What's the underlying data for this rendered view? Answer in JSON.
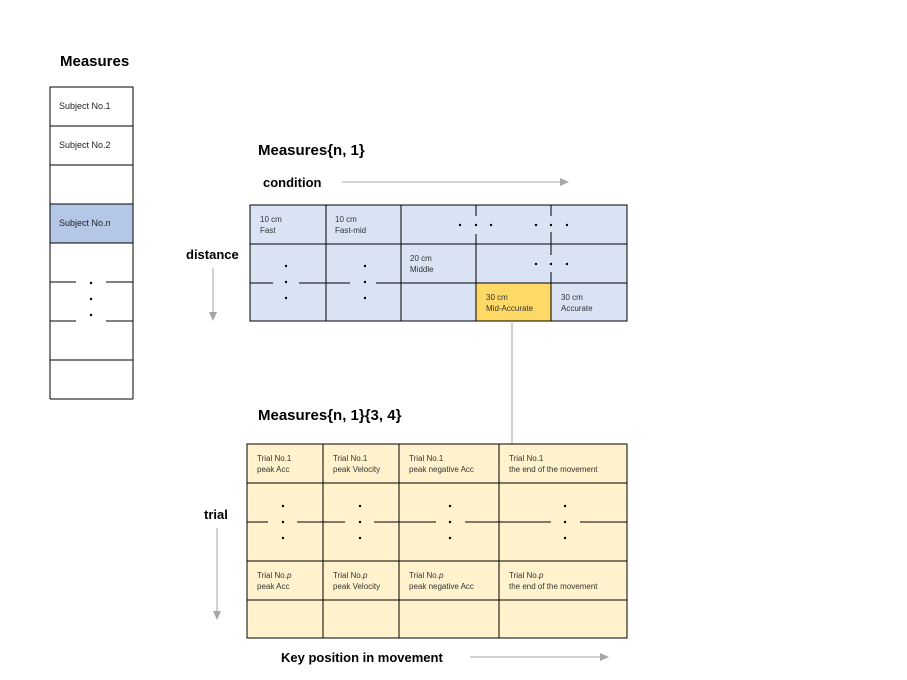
{
  "measures_list": {
    "title": "Measures",
    "items": [
      "Subject No.1",
      "Subject No.2",
      "",
      "Subject No.",
      "",
      "",
      "",
      ""
    ],
    "highlight_suffix": "n"
  },
  "condition_table": {
    "title": "Measures{n, 1}",
    "col_axis_label": "condition",
    "row_axis_label": "distance",
    "cells": {
      "r0c0": [
        "10 cm",
        "Fast"
      ],
      "r0c1": [
        "10 cm",
        "Fast-mid"
      ],
      "r1c2": [
        "20 cm",
        "Middle"
      ],
      "r2c3": [
        "30 cm",
        "Mid-Accurate"
      ],
      "r2c4": [
        "30 cm",
        "Accurate"
      ]
    }
  },
  "trial_table": {
    "title": "Measures{n, 1}{3, 4}",
    "row_axis_label": "trial",
    "col_axis_label": "Key position in movement",
    "first_row": [
      [
        "Trial No.1",
        "peak  Acc"
      ],
      [
        "Trial No.1",
        "peak Velocity"
      ],
      [
        "Trial No.1",
        "peak negative Acc"
      ],
      [
        "Trial No.1",
        "the end of the movement"
      ]
    ],
    "p_row_prefix": "Trial No.",
    "p_row_suffix": "p",
    "p_row_labels": [
      "peak  Acc",
      "peak Velocity",
      "peak negative Acc",
      "the end of the movement"
    ]
  },
  "colors": {
    "blue_fill": "#dae3f3",
    "blue_highlight": "#b4c7e7",
    "yellow_fill": "#fff2cc",
    "yellow_highlight": "#ffd966",
    "border": "#000000",
    "arrow": "#a6a6a6"
  }
}
